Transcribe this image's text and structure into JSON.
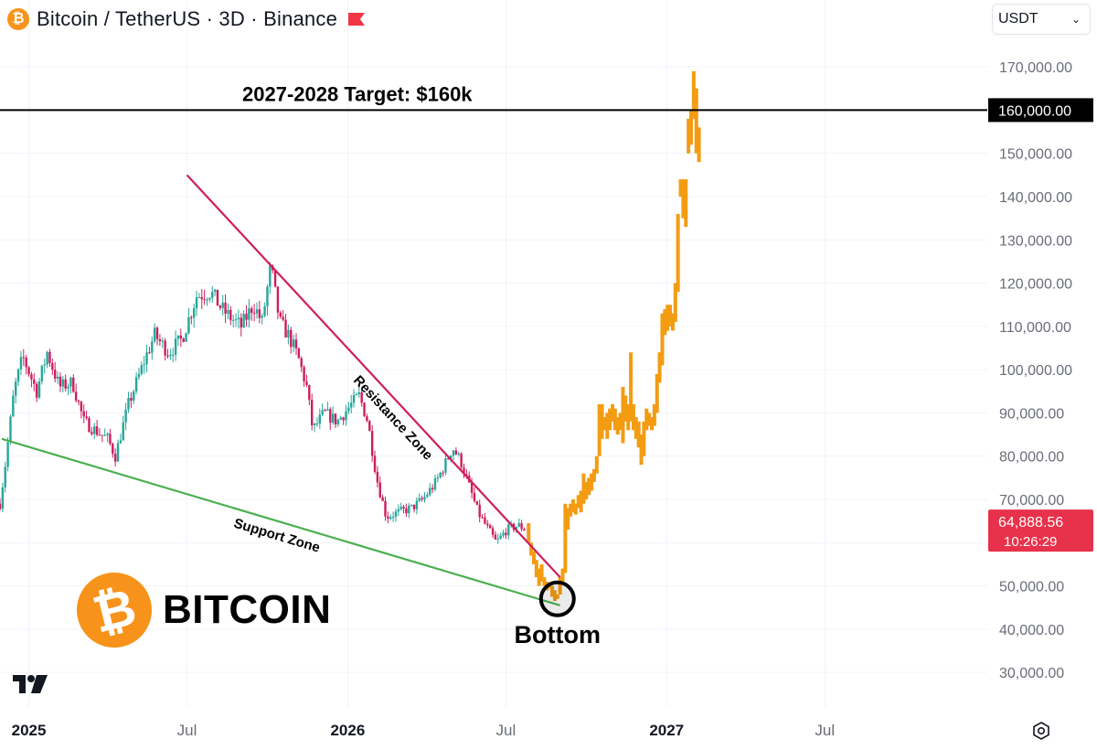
{
  "header": {
    "title": "Bitcoin / TetherUS · 3D · Binance",
    "coin_symbol": "₿",
    "currency": "USDT",
    "currency_icon": "chevron-down-icon"
  },
  "brand": {
    "symbol": "₿",
    "text": "BITCOIN"
  },
  "colors": {
    "history_up": "#26A69A",
    "history_down": "#CE1D5E",
    "projection": "#F39C12",
    "resistance": "#CE1D5E",
    "support": "#4CAF50",
    "target": "#000000",
    "price_label": "#E8314A"
  },
  "chart_data": {
    "type": "candlestick",
    "y_axis": {
      "range": [
        22000,
        177000
      ],
      "ticks": [
        "30,000.00",
        "40,000.00",
        "50,000.00",
        "60,000.00",
        "70,000.00",
        "80,000.00",
        "90,000.00",
        "100,000.00",
        "110,000.00",
        "120,000.00",
        "130,000.00",
        "140,000.00",
        "150,000.00",
        "160,000.00",
        "170,000.00"
      ],
      "tick_values": [
        30000,
        40000,
        50000,
        60000,
        70000,
        80000,
        90000,
        100000,
        110000,
        120000,
        130000,
        140000,
        150000,
        160000,
        170000
      ]
    },
    "x_axis": {
      "range": [
        "2024-11-29",
        "2028-01-03"
      ],
      "ticks": [
        {
          "date": "2025-01-01",
          "label": "2025",
          "bold": true
        },
        {
          "date": "2025-07-01",
          "label": "Jul",
          "bold": false
        },
        {
          "date": "2026-01-01",
          "label": "2026",
          "bold": true
        },
        {
          "date": "2026-07-01",
          "label": "Jul",
          "bold": false
        },
        {
          "date": "2027-01-01",
          "label": "2027",
          "bold": true
        },
        {
          "date": "2027-07-01",
          "label": "Jul",
          "bold": false
        }
      ]
    },
    "historical_path": [
      [
        "2024-11-29",
        69000
      ],
      [
        "2024-12-05",
        78000
      ],
      [
        "2024-12-15",
        95000
      ],
      [
        "2024-12-25",
        103000
      ],
      [
        "2025-01-10",
        95000
      ],
      [
        "2025-01-22",
        104000
      ],
      [
        "2025-02-05",
        96000
      ],
      [
        "2025-02-20",
        97000
      ],
      [
        "2025-03-05",
        88000
      ],
      [
        "2025-03-18",
        86000
      ],
      [
        "2025-04-01",
        84000
      ],
      [
        "2025-04-10",
        80000
      ],
      [
        "2025-04-25",
        92000
      ],
      [
        "2025-05-15",
        103000
      ],
      [
        "2025-05-25",
        108000
      ],
      [
        "2025-06-10",
        104000
      ],
      [
        "2025-06-25",
        107000
      ],
      [
        "2025-07-12",
        117000
      ],
      [
        "2025-07-28",
        118000
      ],
      [
        "2025-08-10",
        114000
      ],
      [
        "2025-08-20",
        112000
      ],
      [
        "2025-09-01",
        110000
      ],
      [
        "2025-09-15",
        115000
      ],
      [
        "2025-09-25",
        111000
      ],
      [
        "2025-10-05",
        124000
      ],
      [
        "2025-10-15",
        111000
      ],
      [
        "2025-10-25",
        108000
      ],
      [
        "2025-11-05",
        103000
      ],
      [
        "2025-11-15",
        96000
      ],
      [
        "2025-11-22",
        86000
      ],
      [
        "2025-12-05",
        90000
      ],
      [
        "2025-12-20",
        88000
      ],
      [
        "2026-01-05",
        92000
      ],
      [
        "2026-01-14",
        94000
      ],
      [
        "2026-01-24",
        88000
      ],
      [
        "2026-02-03",
        75000
      ],
      [
        "2026-02-14",
        66000
      ],
      [
        "2026-02-28",
        67000
      ],
      [
        "2026-03-15",
        68000
      ],
      [
        "2026-03-28",
        70000
      ],
      [
        "2026-04-12",
        74000
      ],
      [
        "2026-04-22",
        78000
      ],
      [
        "2026-05-01",
        82000
      ],
      [
        "2026-05-10",
        79000
      ],
      [
        "2026-05-20",
        73000
      ],
      [
        "2026-05-30",
        67000
      ],
      [
        "2026-06-08",
        64000
      ],
      [
        "2026-06-20",
        60000
      ],
      [
        "2026-07-02",
        63000
      ],
      [
        "2026-07-15",
        64000
      ],
      [
        "2026-07-24",
        63000
      ]
    ],
    "projection": [
      [
        "2026-07-27",
        60000,
        64500,
        58000,
        65000
      ],
      [
        "2026-07-30",
        57000,
        60000,
        56000,
        60500
      ],
      [
        "2026-08-02",
        55000,
        58000,
        54000,
        58500
      ],
      [
        "2026-08-05",
        52000,
        56000,
        51000,
        56500
      ],
      [
        "2026-08-08",
        50000,
        54000,
        49000,
        54500
      ],
      [
        "2026-08-11",
        51000,
        55000,
        50000,
        55500
      ],
      [
        "2026-08-14",
        50000,
        52000,
        49000,
        53000
      ],
      [
        "2026-08-17",
        49000,
        51000,
        48000,
        51500
      ],
      [
        "2026-08-20",
        49500,
        50500,
        48500,
        51000
      ],
      [
        "2026-08-23",
        47500,
        50000,
        47000,
        50500
      ],
      [
        "2026-08-26",
        46500,
        49000,
        46000,
        49500
      ],
      [
        "2026-08-29",
        47000,
        48000,
        46000,
        48500
      ],
      [
        "2026-09-01",
        48000,
        52000,
        47000,
        52500
      ],
      [
        "2026-09-04",
        51000,
        54000,
        50500,
        54500
      ],
      [
        "2026-09-07",
        53000,
        69000,
        52500,
        69500
      ],
      [
        "2026-09-10",
        63000,
        68000,
        62000,
        68500
      ],
      [
        "2026-09-13",
        66000,
        69000,
        65000,
        69500
      ],
      [
        "2026-09-16",
        67000,
        70000,
        66000,
        70500
      ],
      [
        "2026-09-19",
        66500,
        69000,
        66000,
        69500
      ],
      [
        "2026-09-22",
        68000,
        71000,
        67000,
        71500
      ],
      [
        "2026-09-25",
        67000,
        72000,
        66500,
        72500
      ],
      [
        "2026-09-28",
        69000,
        76000,
        68500,
        76500
      ],
      [
        "2026-10-01",
        70000,
        74000,
        69000,
        74500
      ],
      [
        "2026-10-04",
        71000,
        75000,
        70500,
        75500
      ],
      [
        "2026-10-07",
        72000,
        76000,
        71500,
        76500
      ],
      [
        "2026-10-10",
        74000,
        77000,
        73500,
        77500
      ],
      [
        "2026-10-13",
        76000,
        80000,
        75500,
        80500
      ],
      [
        "2026-10-16",
        80000,
        92000,
        79500,
        92500
      ],
      [
        "2026-10-19",
        84000,
        92000,
        83500,
        92500
      ],
      [
        "2026-10-22",
        86000,
        89000,
        85500,
        89500
      ],
      [
        "2026-10-25",
        84000,
        90000,
        83500,
        90500
      ],
      [
        "2026-10-28",
        86000,
        91000,
        85500,
        91500
      ],
      [
        "2026-10-31",
        88000,
        92000,
        87500,
        92500
      ],
      [
        "2026-11-03",
        86000,
        91000,
        85500,
        91500
      ],
      [
        "2026-11-06",
        85000,
        89000,
        84500,
        89500
      ],
      [
        "2026-11-09",
        86000,
        90000,
        85500,
        90500
      ],
      [
        "2026-11-12",
        83000,
        96000,
        82500,
        96500
      ],
      [
        "2026-11-15",
        88000,
        94000,
        87500,
        94500
      ],
      [
        "2026-11-18",
        86000,
        92000,
        85500,
        92500
      ],
      [
        "2026-11-21",
        88000,
        104000,
        87500,
        104500
      ],
      [
        "2026-11-24",
        86000,
        92000,
        85500,
        92500
      ],
      [
        "2026-11-27",
        84000,
        89000,
        83500,
        89500
      ],
      [
        "2026-11-30",
        82000,
        88000,
        81500,
        88500
      ],
      [
        "2026-12-03",
        78000,
        85000,
        77500,
        85500
      ],
      [
        "2026-12-06",
        80000,
        88000,
        79500,
        88500
      ],
      [
        "2026-12-09",
        86000,
        91000,
        85500,
        91500
      ],
      [
        "2026-12-12",
        87000,
        90000,
        86500,
        90500
      ],
      [
        "2026-12-15",
        86000,
        89000,
        85500,
        89500
      ],
      [
        "2026-12-18",
        87000,
        92000,
        86500,
        92500
      ],
      [
        "2026-12-21",
        90000,
        99000,
        89500,
        99500
      ],
      [
        "2026-12-24",
        97000,
        104000,
        96500,
        104500
      ],
      [
        "2026-12-27",
        101000,
        113000,
        100500,
        113500
      ],
      [
        "2026-12-30",
        108000,
        114000,
        107500,
        114500
      ],
      [
        "2027-01-02",
        109000,
        115000,
        108500,
        115500
      ],
      [
        "2027-01-05",
        110000,
        115000,
        109500,
        115500
      ],
      [
        "2027-01-08",
        109000,
        113000,
        108500,
        113500
      ],
      [
        "2027-01-11",
        111000,
        120000,
        110500,
        120500
      ],
      [
        "2027-01-14",
        118000,
        136000,
        117500,
        136500
      ],
      [
        "2027-01-17",
        140000,
        144000,
        139500,
        144500
      ],
      [
        "2027-01-20",
        135000,
        144000,
        134500,
        144500
      ],
      [
        "2027-01-23",
        133000,
        144000,
        131000,
        144500
      ],
      [
        "2027-01-26",
        150000,
        158000,
        149500,
        158500
      ],
      [
        "2027-01-29",
        152000,
        160000,
        151500,
        166000
      ],
      [
        "2027-02-01",
        158000,
        169000,
        157500,
        169500
      ],
      [
        "2027-02-04",
        150000,
        165000,
        149500,
        170000
      ],
      [
        "2027-02-07",
        148000,
        156000,
        146000,
        156500
      ]
    ],
    "target": {
      "value": 160000,
      "label": "2027-2028 Target: $160k",
      "price_label": "160,000.00"
    },
    "resistance": {
      "label": "Resistance Zone",
      "from": [
        "2025-07-01",
        145000
      ],
      "to": [
        "2026-09-01",
        52000
      ]
    },
    "support": {
      "label": "Support Zone",
      "from": [
        "2024-12-01",
        84000
      ],
      "to": [
        "2026-09-01",
        45500
      ]
    },
    "bottom": {
      "label": "Bottom",
      "date": "2026-08-29",
      "value": 47000
    },
    "last_price": {
      "value": 64888.56,
      "label": "64,888.56",
      "countdown": "10:26:29"
    }
  }
}
